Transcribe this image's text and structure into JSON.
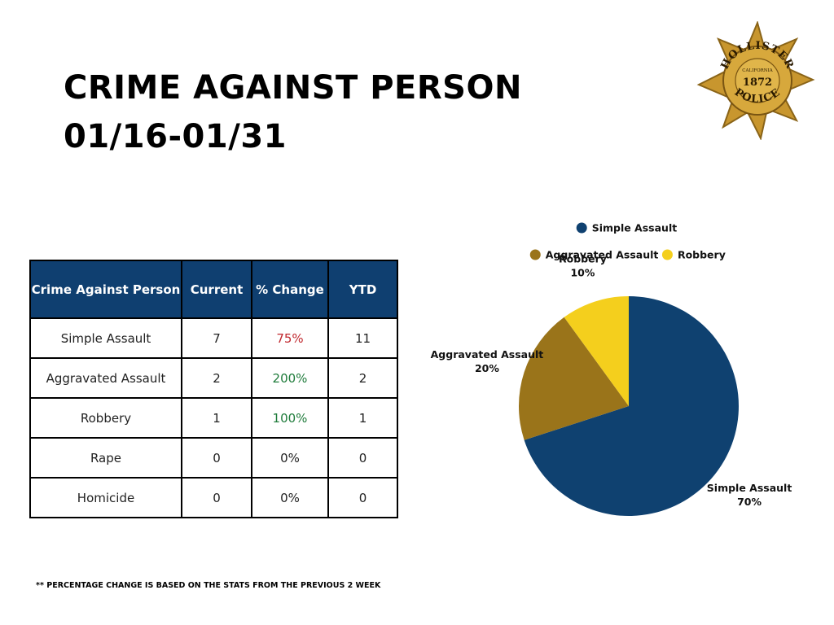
{
  "title": {
    "line1": "CRIME AGAINST PERSON",
    "line2": "01/16-01/31"
  },
  "badge": {
    "top_text": "HOLLISTER",
    "state": "CALIFORNIA",
    "year": "1872",
    "bottom_text": "POLICE"
  },
  "table": {
    "headers": [
      "Crime Against Person",
      "Current",
      "% Change",
      "YTD"
    ],
    "rows": [
      {
        "crime": "Simple Assault",
        "current": "7",
        "change": "75%",
        "change_color": "#c0272d",
        "ytd": "11"
      },
      {
        "crime": "Aggravated Assault",
        "current": "2",
        "change": "200%",
        "change_color": "#1e7b3a",
        "ytd": "2"
      },
      {
        "crime": "Robbery",
        "current": "1",
        "change": "100%",
        "change_color": "#1e7b3a",
        "ytd": "1"
      },
      {
        "crime": "Rape",
        "current": "0",
        "change": "0%",
        "change_color": "#222222",
        "ytd": "0"
      },
      {
        "crime": "Homicide",
        "current": "0",
        "change": "0%",
        "change_color": "#222222",
        "ytd": "0"
      }
    ]
  },
  "chart_data": {
    "type": "pie",
    "legend_position": "top",
    "slices": [
      {
        "name": "Simple Assault",
        "value": 70,
        "label": "70%",
        "color": "#0f4170"
      },
      {
        "name": "Aggravated Assault",
        "value": 20,
        "label": "20%",
        "color": "#9a741a"
      },
      {
        "name": "Robbery",
        "value": 10,
        "label": "10%",
        "color": "#f4cf1d"
      }
    ]
  },
  "footnote": "** PERCENTAGE CHANGE IS BASED ON THE STATS FROM THE PREVIOUS 2 WEEK"
}
